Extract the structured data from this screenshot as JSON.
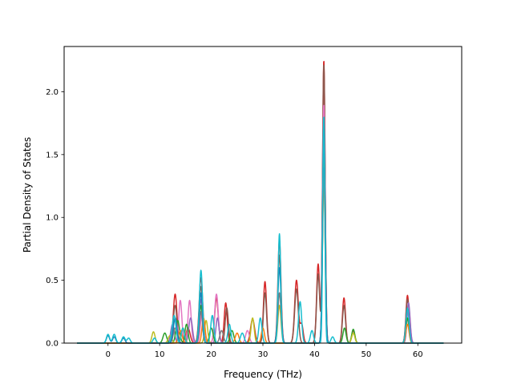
{
  "chart_data": {
    "type": "line",
    "xlabel": "Frequency (THz)",
    "ylabel": "Partial Density of States",
    "xlim": [
      -8.5,
      68.5
    ],
    "ylim": [
      0,
      2.36
    ],
    "xticks": [
      0,
      10,
      20,
      30,
      40,
      50,
      60
    ],
    "yticks": [
      0.0,
      0.5,
      1.0,
      1.5,
      2.0
    ],
    "ytick_labels": [
      "0.0",
      "0.5",
      "1.0",
      "1.5",
      "2.0"
    ],
    "grid": false,
    "colors": [
      "#1f77b4",
      "#ff7f0e",
      "#2ca02c",
      "#d62728",
      "#9467bd",
      "#8c564b",
      "#e377c2",
      "#7f7f7f",
      "#bcbd22",
      "#17becf"
    ],
    "x_range": [
      -6,
      65
    ],
    "series": [
      {
        "color": "#d62728",
        "peaks": [
          [
            13.0,
            0.39,
            0.35
          ],
          [
            15.5,
            0.12,
            0.4
          ],
          [
            18.0,
            0.52,
            0.35
          ],
          [
            21.0,
            0.36,
            0.35
          ],
          [
            22.8,
            0.32,
            0.3
          ],
          [
            28.0,
            0.19,
            0.4
          ],
          [
            30.4,
            0.49,
            0.3
          ],
          [
            33.2,
            0.82,
            0.3
          ],
          [
            36.5,
            0.5,
            0.35
          ],
          [
            37.5,
            0.15,
            0.3
          ],
          [
            40.7,
            0.63,
            0.3
          ],
          [
            41.8,
            2.25,
            0.25
          ],
          [
            45.7,
            0.36,
            0.3
          ],
          [
            47.5,
            0.1,
            0.3
          ],
          [
            58.0,
            0.38,
            0.3
          ]
        ]
      },
      {
        "color": "#8c564b",
        "peaks": [
          [
            13.0,
            0.3,
            0.35
          ],
          [
            18.0,
            0.45,
            0.35
          ],
          [
            23.0,
            0.28,
            0.3
          ],
          [
            30.4,
            0.4,
            0.3
          ],
          [
            33.2,
            0.7,
            0.3
          ],
          [
            36.5,
            0.43,
            0.35
          ],
          [
            40.7,
            0.55,
            0.3
          ],
          [
            41.8,
            2.22,
            0.25
          ],
          [
            45.7,
            0.3,
            0.3
          ],
          [
            58.0,
            0.35,
            0.3
          ]
        ]
      },
      {
        "color": "#e377c2",
        "peaks": [
          [
            14.0,
            0.34,
            0.3
          ],
          [
            15.8,
            0.34,
            0.3
          ],
          [
            21.0,
            0.39,
            0.35
          ],
          [
            18.2,
            0.25,
            0.3
          ],
          [
            27.0,
            0.1,
            0.35
          ],
          [
            41.8,
            1.9,
            0.25
          ],
          [
            58.2,
            0.3,
            0.3
          ]
        ]
      },
      {
        "color": "#9467bd",
        "peaks": [
          [
            12.5,
            0.15,
            0.35
          ],
          [
            16.0,
            0.2,
            0.35
          ],
          [
            18.0,
            0.35,
            0.3
          ],
          [
            21.2,
            0.2,
            0.3
          ],
          [
            41.8,
            1.7,
            0.25
          ],
          [
            58.2,
            0.32,
            0.3
          ]
        ]
      },
      {
        "color": "#2ca02c",
        "peaks": [
          [
            11.0,
            0.08,
            0.35
          ],
          [
            13.5,
            0.18,
            0.35
          ],
          [
            15.2,
            0.15,
            0.3
          ],
          [
            18.0,
            0.3,
            0.3
          ],
          [
            20.0,
            0.12,
            0.35
          ],
          [
            24.0,
            0.1,
            0.35
          ],
          [
            41.8,
            1.6,
            0.25
          ],
          [
            45.8,
            0.12,
            0.3
          ],
          [
            47.5,
            0.11,
            0.3
          ],
          [
            58.0,
            0.2,
            0.3
          ]
        ]
      },
      {
        "color": "#bcbd22",
        "peaks": [
          [
            8.8,
            0.09,
            0.3
          ],
          [
            12.0,
            0.06,
            0.35
          ],
          [
            14.5,
            0.12,
            0.35
          ],
          [
            19.0,
            0.18,
            0.3
          ],
          [
            28.0,
            0.2,
            0.3
          ],
          [
            33.2,
            0.3,
            0.3
          ],
          [
            41.8,
            1.5,
            0.25
          ],
          [
            47.5,
            0.08,
            0.3
          ]
        ]
      },
      {
        "color": "#ff7f0e",
        "peaks": [
          [
            14.0,
            0.1,
            0.35
          ],
          [
            18.5,
            0.2,
            0.3
          ],
          [
            25.0,
            0.08,
            0.35
          ],
          [
            30.0,
            0.12,
            0.3
          ],
          [
            41.8,
            1.3,
            0.25
          ],
          [
            58.0,
            0.15,
            0.3
          ]
        ]
      },
      {
        "color": "#7f7f7f",
        "peaks": [
          [
            13.0,
            0.12,
            0.35
          ],
          [
            18.0,
            0.25,
            0.3
          ],
          [
            22.0,
            0.1,
            0.35
          ],
          [
            33.2,
            0.4,
            0.3
          ],
          [
            41.8,
            1.4,
            0.25
          ]
        ]
      },
      {
        "color": "#1f77b4",
        "peaks": [
          [
            0.0,
            0.06,
            0.3
          ],
          [
            1.2,
            0.05,
            0.3
          ],
          [
            3.0,
            0.04,
            0.3
          ],
          [
            13.0,
            0.2,
            0.35
          ],
          [
            18.0,
            0.4,
            0.3
          ],
          [
            33.2,
            0.6,
            0.3
          ],
          [
            41.8,
            1.75,
            0.25
          ]
        ]
      },
      {
        "color": "#17becf",
        "peaks": [
          [
            0.0,
            0.07,
            0.3
          ],
          [
            1.2,
            0.07,
            0.3
          ],
          [
            3.0,
            0.05,
            0.3
          ],
          [
            4.0,
            0.04,
            0.3
          ],
          [
            9.0,
            0.04,
            0.3
          ],
          [
            12.8,
            0.22,
            0.35
          ],
          [
            14.5,
            0.12,
            0.3
          ],
          [
            18.0,
            0.58,
            0.3
          ],
          [
            20.2,
            0.22,
            0.3
          ],
          [
            23.5,
            0.15,
            0.3
          ],
          [
            26.0,
            0.08,
            0.35
          ],
          [
            29.5,
            0.2,
            0.3
          ],
          [
            33.2,
            0.87,
            0.25
          ],
          [
            37.2,
            0.33,
            0.3
          ],
          [
            39.5,
            0.1,
            0.3
          ],
          [
            41.8,
            1.81,
            0.2
          ],
          [
            43.5,
            0.05,
            0.3
          ],
          [
            58.0,
            0.28,
            0.3
          ]
        ]
      }
    ]
  }
}
